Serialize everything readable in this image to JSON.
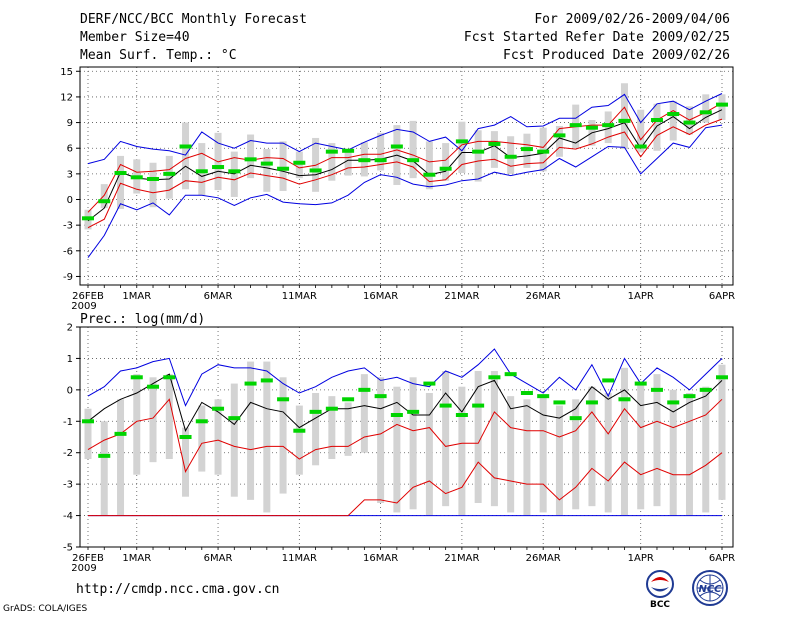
{
  "header": {
    "title": "DERF/NCC/BCC Monthly Forecast",
    "member_size": "Member Size=40",
    "variable": "Mean Surf. Temp.: °C",
    "period": "For 2009/02/26-2009/04/06",
    "started": "Fcst Started Refer Date 2009/02/25",
    "produced": "Fcst Produced Date 2009/02/26"
  },
  "footer": {
    "url": "http://cmdp.ncc.cma.gov.cn",
    "grads": "GrADS: COLA/IGES",
    "logo_bcc": "BCC",
    "logo_ncc": "NCC"
  },
  "colors": {
    "box": "#d3d3d3",
    "mean": "#00d400",
    "ensemble_mean": "#000000",
    "std": "#e00000",
    "range": "#0000e0",
    "grid": "#555555"
  },
  "chart_data": [
    {
      "type": "line",
      "title": "Mean Surf. Temp.: °C",
      "day_count": 40,
      "xlabel_ticks": [
        "26FEB",
        "1MAR",
        "6MAR",
        "11MAR",
        "16MAR",
        "21MAR",
        "26MAR",
        "1APR",
        "6APR"
      ],
      "xlabel_year": "2009",
      "tick_days": [
        0,
        3,
        8,
        13,
        18,
        23,
        28,
        34,
        39
      ],
      "ylim": [
        -10,
        15.5
      ],
      "yticks": [
        -9,
        -6,
        -3,
        0,
        3,
        6,
        9,
        12,
        15
      ],
      "series": [
        {
          "name": "max",
          "values": [
            4.2,
            4.7,
            6.8,
            6.2,
            5.9,
            5.7,
            5.2,
            7.9,
            6.6,
            6.0,
            6.9,
            6.6,
            6.6,
            5.6,
            6.6,
            6.2,
            5.8,
            6.7,
            7.5,
            8.2,
            7.9,
            6.8,
            7.3,
            5.7,
            8.3,
            8.7,
            9.7,
            8.5,
            8.6,
            9.5,
            9.5,
            10.8,
            11.0,
            12.3,
            9.0,
            11.2,
            11.5,
            10.5,
            11.5,
            12.4
          ]
        },
        {
          "name": "upper_std",
          "values": [
            -1.5,
            0.5,
            4.1,
            3.2,
            3.3,
            3.5,
            4.8,
            5.4,
            4.4,
            4.9,
            4.6,
            4.9,
            4.8,
            3.7,
            4.0,
            4.9,
            4.9,
            5.3,
            5.3,
            5.8,
            5.2,
            4.4,
            4.6,
            6.4,
            6.8,
            6.8,
            6.6,
            6.4,
            6.1,
            8.3,
            8.5,
            8.7,
            8.7,
            10.8,
            7.0,
            9.3,
            10.4,
            9.3,
            10.2,
            11.3
          ]
        },
        {
          "name": "ensemble_mean",
          "values": [
            -2.5,
            -1.0,
            3.2,
            2.5,
            2.3,
            2.4,
            3.9,
            2.7,
            3.3,
            3.0,
            4.0,
            3.7,
            3.3,
            2.8,
            2.9,
            3.5,
            4.6,
            4.6,
            4.7,
            5.2,
            4.5,
            2.9,
            3.3,
            5.5,
            5.5,
            6.3,
            4.9,
            5.1,
            5.4,
            7.2,
            6.6,
            7.8,
            8.3,
            9.0,
            6.0,
            8.6,
            9.7,
            8.3,
            9.6,
            10.5
          ]
        },
        {
          "name": "lower_std",
          "values": [
            -3.3,
            -2.3,
            1.9,
            1.2,
            0.8,
            1.1,
            2.2,
            2.0,
            2.6,
            2.3,
            3.1,
            2.8,
            2.5,
            1.8,
            2.3,
            2.9,
            3.7,
            3.8,
            4.1,
            4.4,
            3.8,
            2.1,
            2.3,
            4.1,
            4.5,
            4.7,
            3.9,
            4.2,
            4.3,
            6.1,
            5.9,
            6.5,
            7.3,
            7.9,
            5.0,
            7.5,
            8.5,
            7.6,
            8.7,
            9.4
          ]
        },
        {
          "name": "min",
          "values": [
            -6.8,
            -4.2,
            -0.5,
            -1.2,
            -0.4,
            -1.8,
            0.5,
            0.5,
            0.2,
            -0.7,
            0.2,
            0.6,
            -0.3,
            -0.5,
            -0.6,
            -0.4,
            0.5,
            2.0,
            2.9,
            2.6,
            1.8,
            1.5,
            1.7,
            2.2,
            2.4,
            3.2,
            2.8,
            3.2,
            3.5,
            4.8,
            3.8,
            5.0,
            6.2,
            6.1,
            3.0,
            4.8,
            6.6,
            6.1,
            8.4,
            8.7
          ]
        },
        {
          "name": "box_top",
          "values": [
            -1.2,
            1.8,
            5.1,
            4.7,
            4.3,
            5.1,
            9.0,
            6.6,
            7.8,
            5.6,
            7.6,
            5.9,
            6.8,
            5.6,
            7.2,
            6.6,
            5.8,
            6.7,
            7.8,
            8.7,
            9.2,
            6.8,
            6.6,
            9.1,
            8.1,
            8.0,
            7.4,
            7.7,
            8.4,
            8.6,
            11.1,
            9.3,
            10.3,
            13.6,
            10.5,
            11.2,
            11.5,
            10.9,
            12.3,
            12.3
          ]
        },
        {
          "name": "box_bottom",
          "values": [
            -3.5,
            -1.0,
            -1.1,
            0.7,
            -0.9,
            0.1,
            1.2,
            0.5,
            1.1,
            0.3,
            2.5,
            0.9,
            1.0,
            2.5,
            0.9,
            2.2,
            2.8,
            2.7,
            3.4,
            1.7,
            2.5,
            1.2,
            2.2,
            3.1,
            2.1,
            3.7,
            3.0,
            3.7,
            3.3,
            5.0,
            6.0,
            6.3,
            6.6,
            5.9,
            5.5,
            5.7,
            6.9,
            7.6,
            9.0,
            9.3
          ]
        },
        {
          "name": "mean_marker",
          "values": [
            -2.2,
            -0.2,
            3.1,
            2.6,
            2.4,
            3.0,
            6.2,
            3.3,
            3.8,
            3.3,
            4.7,
            4.2,
            3.6,
            4.3,
            3.4,
            5.6,
            5.7,
            4.6,
            4.6,
            6.2,
            4.6,
            2.9,
            3.6,
            6.8,
            5.6,
            6.5,
            5.0,
            5.9,
            5.6,
            7.5,
            8.7,
            8.4,
            8.7,
            9.2,
            6.2,
            9.3,
            10.0,
            9.0,
            10.2,
            11.1
          ]
        }
      ]
    },
    {
      "type": "line",
      "title": "Prec.: log(mm/d)",
      "day_count": 40,
      "xlabel_ticks": [
        "26FEB",
        "1MAR",
        "6MAR",
        "11MAR",
        "16MAR",
        "21MAR",
        "26MAR",
        "1APR",
        "6APR"
      ],
      "xlabel_year": "2009",
      "tick_days": [
        0,
        3,
        8,
        13,
        18,
        23,
        28,
        34,
        39
      ],
      "ylim": [
        -5,
        2
      ],
      "yticks": [
        -5,
        -4,
        -3,
        -2,
        -1,
        0,
        1,
        2
      ],
      "series": [
        {
          "name": "max",
          "values": [
            -0.2,
            0.1,
            0.6,
            0.7,
            0.9,
            1.0,
            -0.5,
            0.5,
            0.8,
            0.7,
            0.7,
            0.6,
            0.2,
            -0.1,
            0.1,
            0.4,
            0.6,
            0.7,
            0.3,
            0.4,
            0.2,
            0.1,
            0.6,
            0.4,
            0.8,
            1.3,
            0.5,
            0.2,
            -0.1,
            0.4,
            0.0,
            0.8,
            -0.2,
            1.0,
            0.2,
            0.7,
            0.4,
            0.0,
            0.5,
            1.0
          ]
        },
        {
          "name": "ensemble_mean",
          "values": [
            -1.0,
            -0.6,
            -0.3,
            -0.1,
            0.2,
            0.5,
            -1.3,
            -0.4,
            -0.7,
            -1.1,
            -0.4,
            -0.6,
            -0.7,
            -1.2,
            -0.9,
            -0.6,
            -0.6,
            -0.5,
            -0.6,
            -0.4,
            -0.8,
            -0.8,
            -0.1,
            -0.7,
            0.1,
            0.3,
            -0.6,
            -0.5,
            -0.8,
            -0.9,
            -0.6,
            0.1,
            -0.3,
            0.0,
            -0.5,
            -0.4,
            -0.7,
            -0.4,
            -0.2,
            0.3
          ]
        },
        {
          "name": "std_upper",
          "values": [
            -1.9,
            -1.6,
            -1.4,
            -1.0,
            -0.9,
            -0.3,
            -2.6,
            -1.7,
            -1.6,
            -1.8,
            -1.9,
            -1.8,
            -1.8,
            -2.2,
            -1.9,
            -1.8,
            -1.8,
            -1.5,
            -1.4,
            -1.1,
            -1.3,
            -1.2,
            -1.8,
            -1.7,
            -1.7,
            -0.7,
            -1.2,
            -1.3,
            -1.3,
            -1.5,
            -1.3,
            -0.7,
            -1.4,
            -0.6,
            -1.2,
            -1.0,
            -1.2,
            -1.0,
            -0.8,
            -0.3
          ]
        },
        {
          "name": "std_lower",
          "values": [
            -4.0,
            -4.0,
            -4.0,
            -4.0,
            -4.0,
            -4.0,
            -4.0,
            -4.0,
            -4.0,
            -4.0,
            -4.0,
            -4.0,
            -4.0,
            -4.0,
            -4.0,
            -4.0,
            -4.0,
            -3.5,
            -3.5,
            -3.6,
            -3.1,
            -2.9,
            -3.3,
            -3.1,
            -2.3,
            -2.8,
            -2.9,
            -3.0,
            -3.0,
            -3.5,
            -3.1,
            -2.5,
            -2.9,
            -2.3,
            -2.7,
            -2.5,
            -2.7,
            -2.7,
            -2.4,
            -2.0
          ]
        },
        {
          "name": "min",
          "values": [
            -4.0,
            -4.0,
            -4.0,
            -4.0,
            -4.0,
            -4.0,
            -4.0,
            -4.0,
            -4.0,
            -4.0,
            -4.0,
            -4.0,
            -4.0,
            -4.0,
            -4.0,
            -4.0,
            -4.0,
            -4.0,
            -4.0,
            -4.0,
            -4.0,
            -4.0,
            -4.0,
            -4.0,
            -4.0,
            -4.0,
            -4.0,
            -4.0,
            -4.0,
            -4.0,
            -4.0,
            -4.0,
            -4.0,
            -4.0,
            -4.0,
            -4.0,
            -4.0,
            -4.0,
            -4.0,
            -4.0
          ]
        },
        {
          "name": "box_top",
          "values": [
            -0.6,
            -1.0,
            -0.3,
            0.5,
            0.4,
            0.5,
            -1.2,
            -0.5,
            -0.3,
            0.2,
            0.9,
            0.9,
            0.4,
            -0.5,
            -0.1,
            -0.2,
            -0.4,
            0.5,
            0.4,
            0.1,
            0.4,
            -0.1,
            0.6,
            0.1,
            0.6,
            0.6,
            -0.2,
            -0.3,
            -0.2,
            -0.5,
            -0.3,
            0.1,
            -0.1,
            0.7,
            0.2,
            0.5,
            0.0,
            -0.1,
            0.1,
            0.8
          ]
        },
        {
          "name": "box_bottom",
          "values": [
            -2.2,
            -4.0,
            -4.0,
            -2.7,
            -2.3,
            -2.2,
            -3.4,
            -2.6,
            -2.7,
            -3.4,
            -3.5,
            -3.9,
            -3.3,
            -2.7,
            -2.4,
            -2.2,
            -2.1,
            -2.0,
            -3.6,
            -3.9,
            -3.8,
            -4.0,
            -3.7,
            -4.0,
            -3.6,
            -3.7,
            -3.9,
            -4.0,
            -3.9,
            -4.0,
            -3.8,
            -3.7,
            -3.9,
            -4.0,
            -3.8,
            -3.7,
            -4.0,
            -4.0,
            -3.9,
            -3.5
          ]
        },
        {
          "name": "mean_marker",
          "values": [
            -1.0,
            -2.1,
            -1.4,
            0.4,
            0.1,
            0.4,
            -1.5,
            -1.0,
            -0.6,
            -0.9,
            0.2,
            0.3,
            -0.3,
            -1.3,
            -0.7,
            -0.6,
            -0.3,
            0.0,
            -0.2,
            -0.8,
            -0.7,
            0.2,
            -0.5,
            -0.8,
            -0.5,
            0.4,
            0.5,
            -0.1,
            -0.2,
            -0.4,
            -0.9,
            -0.4,
            0.3,
            -0.3,
            0.2,
            0.0,
            -0.4,
            -0.2,
            0.0,
            0.4
          ]
        }
      ]
    }
  ]
}
